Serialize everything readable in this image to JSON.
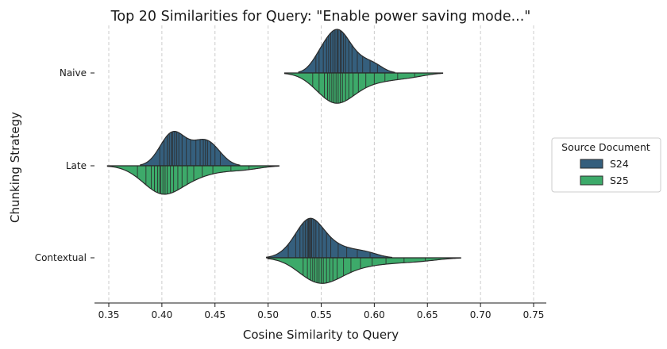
{
  "chart_data": {
    "type": "violin",
    "title": "Top 20 Similarities for Query: \"Enable power saving mode...\"",
    "xlabel": "Cosine Similarity to Query",
    "ylabel": "Chunking Strategy",
    "xlim": [
      0.33,
      0.76
    ],
    "xticks": [
      "0.35",
      "0.40",
      "0.45",
      "0.50",
      "0.55",
      "0.60",
      "0.65",
      "0.70",
      "0.75"
    ],
    "categories": [
      "Naive",
      "Late",
      "Contextual"
    ],
    "grid": "vertical dashed",
    "legend": {
      "title": "Source Document",
      "placement": "right",
      "entries": [
        {
          "name": "S24",
          "color": "#355f7d"
        },
        {
          "name": "S25",
          "color": "#3daa6a"
        }
      ]
    },
    "series": [
      {
        "name": "S24",
        "color": "#355f7d",
        "side": "upper",
        "violins": {
          "Naive": [
            0.545,
            0.548,
            0.552,
            0.555,
            0.557,
            0.559,
            0.561,
            0.563,
            0.565,
            0.566,
            0.568,
            0.569,
            0.571,
            0.573,
            0.576,
            0.579,
            0.584,
            0.589,
            0.596,
            0.603
          ],
          "Late": [
            0.398,
            0.402,
            0.405,
            0.407,
            0.409,
            0.41,
            0.412,
            0.414,
            0.416,
            0.419,
            0.423,
            0.427,
            0.432,
            0.436,
            0.439,
            0.441,
            0.443,
            0.446,
            0.45,
            0.455
          ],
          "Contextual": [
            0.519,
            0.526,
            0.53,
            0.533,
            0.535,
            0.537,
            0.538,
            0.539,
            0.54,
            0.541,
            0.543,
            0.545,
            0.548,
            0.551,
            0.555,
            0.559,
            0.566,
            0.574,
            0.584,
            0.596
          ]
        }
      },
      {
        "name": "S25",
        "color": "#3daa6a",
        "side": "lower",
        "violins": {
          "Naive": [
            0.542,
            0.548,
            0.553,
            0.556,
            0.558,
            0.56,
            0.562,
            0.564,
            0.566,
            0.568,
            0.57,
            0.573,
            0.576,
            0.58,
            0.585,
            0.592,
            0.6,
            0.61,
            0.622,
            0.638
          ],
          "Late": [
            0.377,
            0.385,
            0.39,
            0.393,
            0.396,
            0.398,
            0.399,
            0.401,
            0.403,
            0.405,
            0.408,
            0.411,
            0.415,
            0.419,
            0.424,
            0.43,
            0.438,
            0.448,
            0.465,
            0.482
          ],
          "Contextual": [
            0.533,
            0.537,
            0.54,
            0.542,
            0.544,
            0.546,
            0.548,
            0.55,
            0.552,
            0.555,
            0.558,
            0.561,
            0.565,
            0.571,
            0.578,
            0.587,
            0.598,
            0.611,
            0.628,
            0.648
          ]
        }
      }
    ]
  }
}
